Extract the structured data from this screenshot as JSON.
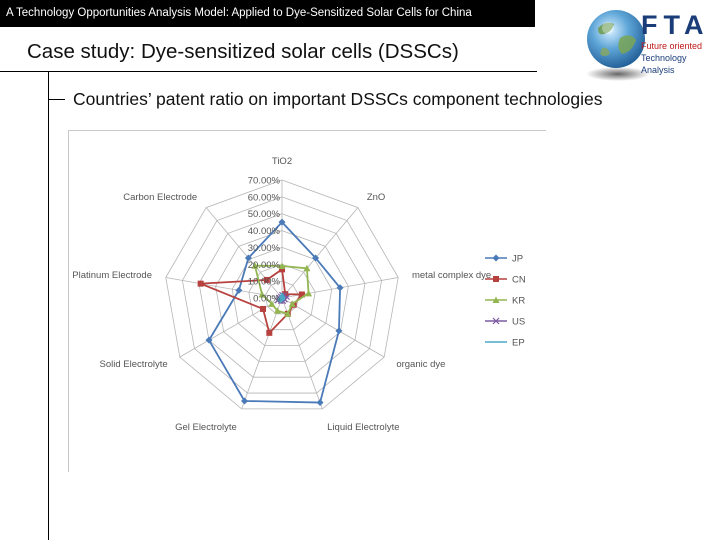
{
  "header": {
    "banner": "A Technology Opportunities Analysis Model: Applied to Dye-Sensitized Solar Cells for China",
    "title": "Case study: Dye-sensitized solar cells (DSSCs)",
    "subtitle": "Countries’ patent ratio on important DSSCs component technologies"
  },
  "logo": {
    "name": "FTA",
    "line1": "Future oriented",
    "line2": "Technology",
    "line3": "Analysis"
  },
  "colors": {
    "JP": "#4a7ab8",
    "CN": "#b7413e",
    "KR": "#93b651",
    "US": "#7c5aa2",
    "EP": "#48a9c5"
  },
  "chart_data": {
    "type": "radar",
    "categories": [
      "TiO2",
      "ZnO",
      "metal complex dye",
      "organic dye",
      "Liquid Electrolyte",
      "Gel Electrolyte",
      "Solid Electrolyte",
      "Platinum Electrode",
      "Carbon Electrode"
    ],
    "rlim": [
      0,
      70
    ],
    "ticks": [
      "0.00%",
      "10.00%",
      "20.00%",
      "30.00%",
      "40.00%",
      "50.00%",
      "60.00%",
      "70.00%"
    ],
    "legend_position": "right",
    "series": [
      {
        "name": "JP",
        "values": [
          45,
          31,
          35,
          39,
          66,
          65,
          50,
          26,
          31
        ]
      },
      {
        "name": "CN",
        "values": [
          17,
          3,
          12,
          8,
          10,
          22,
          13,
          49,
          14
        ]
      },
      {
        "name": "KR",
        "values": [
          19,
          23,
          16,
          7,
          10,
          8,
          7,
          12,
          25
        ]
      },
      {
        "name": "US",
        "values": [
          2,
          2,
          3,
          2,
          2,
          2,
          3,
          2,
          1
        ]
      },
      {
        "name": "EP",
        "values": [
          2,
          1,
          1,
          1,
          1,
          2,
          2,
          1,
          1
        ]
      }
    ]
  }
}
